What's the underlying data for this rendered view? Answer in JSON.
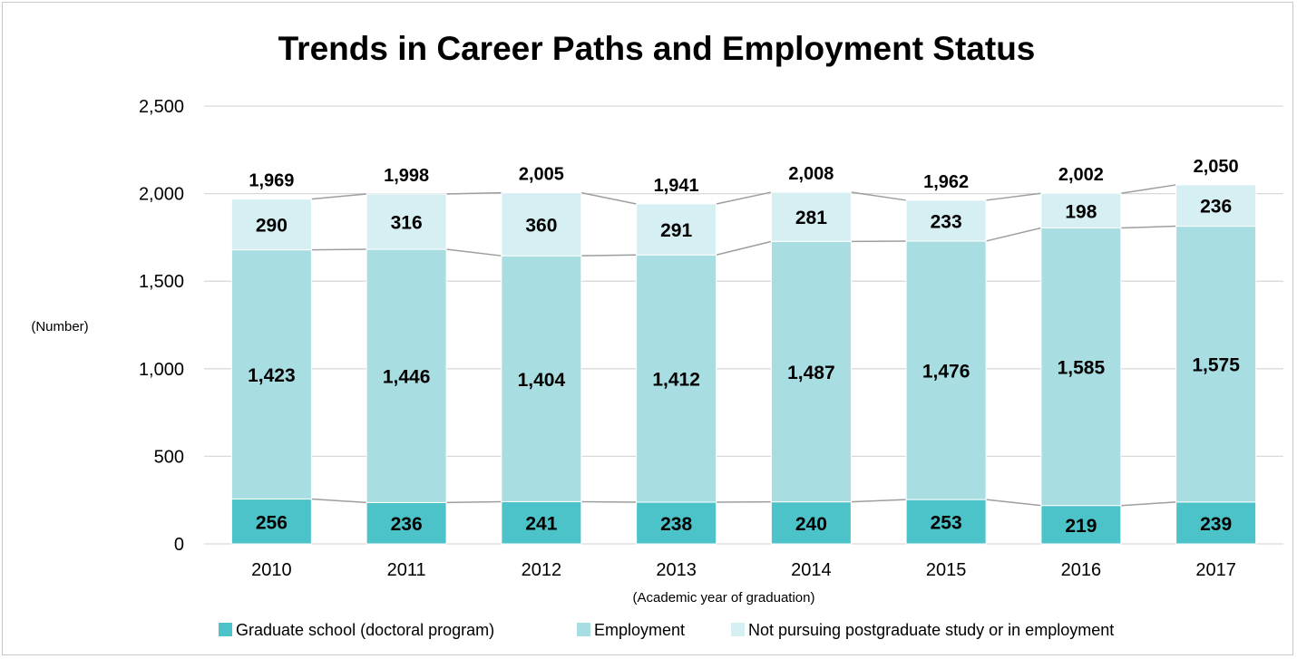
{
  "chart_data": {
    "type": "bar",
    "stacked": true,
    "title": "Trends in Career Paths and Employment Status",
    "ylabel": "(Number)",
    "xlabel": "(Academic year of graduation)",
    "ylim": [
      0,
      2500
    ],
    "yticks": [
      0,
      500,
      1000,
      1500,
      2000,
      2500
    ],
    "ytick_labels": [
      "0",
      "500",
      "1,000",
      "1,500",
      "2,000",
      "2,500"
    ],
    "grid": true,
    "legend_position": "bottom",
    "categories": [
      "2010",
      "2011",
      "2012",
      "2013",
      "2014",
      "2015",
      "2016",
      "2017"
    ],
    "series": [
      {
        "name": "Graduate school (doctoral program)",
        "color": "#4cc3c9",
        "values": [
          256,
          236,
          241,
          238,
          240,
          253,
          219,
          239
        ],
        "labels": [
          "256",
          "236",
          "241",
          "238",
          "240",
          "253",
          "219",
          "239"
        ]
      },
      {
        "name": "Employment",
        "color": "#a8dde2",
        "values": [
          1423,
          1446,
          1404,
          1412,
          1487,
          1476,
          1585,
          1575
        ],
        "labels": [
          "1,423",
          "1,446",
          "1,404",
          "1,412",
          "1,487",
          "1,476",
          "1,585",
          "1,575"
        ]
      },
      {
        "name": "Not pursuing postgraduate study or in employment",
        "color": "#d6eff2",
        "values": [
          290,
          316,
          360,
          291,
          281,
          233,
          198,
          236
        ],
        "labels": [
          "290",
          "316",
          "360",
          "291",
          "281",
          "233",
          "198",
          "236"
        ]
      }
    ],
    "totals": [
      1969,
      1998,
      2005,
      1941,
      2008,
      1962,
      2002,
      2050
    ],
    "total_labels": [
      "1,969",
      "1,998",
      "2,005",
      "1,941",
      "2,008",
      "1,962",
      "2,002",
      "2,050"
    ],
    "series_lines": true,
    "series_line_color": "#9e9e9e",
    "gridline_color": "#d9d9d9"
  }
}
